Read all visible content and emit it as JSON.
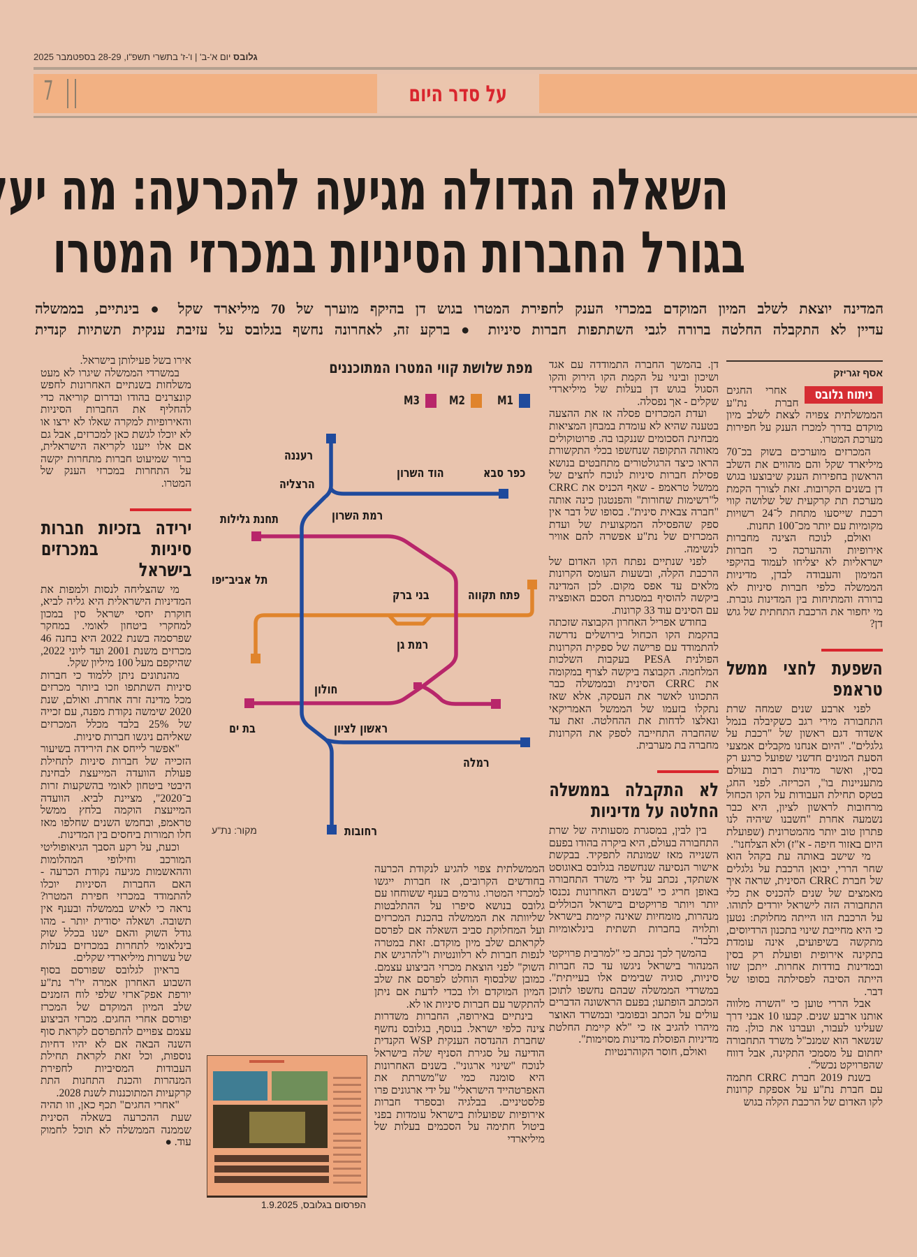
{
  "header": {
    "brand": "גלובס",
    "date_line": "יום א'-ב' | ו'-ז' בתשרי תשפ\"ו, 28-29 בספטמבר 2025"
  },
  "section": {
    "title": "על סדר היום",
    "page_number": "7"
  },
  "colors": {
    "background": "#e9c4ae",
    "band": "#f2b183",
    "accent_red": "#d9262e",
    "m1": "#1f4a9c",
    "m2": "#e0842c",
    "m3": "#b8266a"
  },
  "headline": {
    "lines": [
      "השאלה הגדולה מגיעה להכרעה: מה יעלה",
      "בגורל החברות הסיניות במכרזי המטרו"
    ]
  },
  "subheadline": {
    "lines": [
      "המדינה יוצאת לשלב המיון המוקדם במכרזי הענק לחפירת המטרו בגוש דן בהיקף מוערך של 70 מיליארד שקל ● בינתיים, בממשלה",
      "עדיין לא התקבלה החלטה ברורה לגבי השתתפות חברות סיניות ● ברקע זה, לאחרונה נחשף בגלובס על עזיבת ענקית תשתיות קנדית"
    ]
  },
  "article": {
    "byline": "אסף זגריזק",
    "badge": "ניתוח גלובס",
    "columns": [
      {
        "blocks": [
          {
            "type": "p",
            "text": "אחרי החגים חברת נת\"ע הממשלתית צפויה לצאת לשלב מיון מוקדם בדרך למכרז הענק על חפירות מערכת המטרו."
          },
          {
            "type": "p",
            "text": "המכרזים מוערכים בשוק בכ־70 מיליארד שקל והם מהווים את השלב הראשון בחפירות הענק שיבוצעו בגוש דן בשנים הקרובות. זאת לצורך הקמת מערכת תת קרקעית של שלושה קווי רכבת שייסעו מתחת ל־24 רשויות מקומיות עם יותר מכ־100 תחנות."
          },
          {
            "type": "p",
            "text": "ואולם, לנוכח הצינה מחברות אירופיות וההערכה כי חברות ישראליות לא יצליחו לעמוד בהיקפי המימון והעבודה לבדן, מדיניות הממשלה כלפי חברות סיניות לא ברורה והמתיחות בין המדינות גוברת. מי יחפור את הרכבת התחתית של גוש דן?"
          },
          {
            "type": "h",
            "text": "השפעת לחצי ממשל טראמפ"
          },
          {
            "type": "p",
            "text": "לפני ארבע שנים שמחה שרת התחבורה מירי רגב כשקיבלה בנמל אשדוד דגם ראשון של \"רכבת על גלגלים\". \"היום אנחנו מקבלים אמצעי הסעת המונים חדשני שפועל כרגע רק בסין, ואשר מדינות רבות בעולם מתעניינות בו\", הכריזה. לפני החג, בטקס תחילת העבודות על הקו הכחול מרחובות לראשון לציון, היא כבר נשמעה אחרת \"חשבנו שיהיה לנו פתרון טוב יותר מהמטרונית (שפועלת היום באזור חיפה - א\"ז) ולא הצלחנו\"."
          },
          {
            "type": "p",
            "text": "מי שישב באותה עת בקהל הוא שחר הררי, יבואן הרכבת על גלגלים של חברת CRRC הסינית, שראה איך מאמצים של שנים להכניס את כלי התחבורה הזה לישראל יורדים לתוהו. על הרכבת הזו הייתה מחלוקת: נטען כי היא מחייבת שינוי בתכנון הרדיוסים, מתקשה בשיפועים, אינה עומדת בתקינה אירופית ופועלת רק בסין ובמדינות בודדות אחרות. ייתכן שזו הייתה הסיבה לפסילתה בסופו של דבר."
          },
          {
            "type": "p",
            "text": "אבל הררי טוען כי \"השרה מלווה אותנו ארבע שנים. קבעו 10 אבני דרך שעלינו לעבור, ועברנו את כולן. מה שנשאר הוא שמנכ\"ל משרד התחבורה יחתום על מסמכי התקינה, אבל דווח שהפרויקט נכשל\"."
          },
          {
            "type": "p",
            "text": "בשנת 2019 חברת CRRC חתמה עם חברת נת\"ע על אספקת קרונות לקו האדום של הרכבת הקלה בגוש"
          }
        ]
      },
      {
        "blocks": [
          {
            "type": "c",
            "text": "דן. בהמשך החברה התמודדה עם אגד ושיכון ובינוי על הקמת הקו הירוק והקו הסגול בגוש דן בעלות של מיליארדי שקלים - אך נפסלה."
          },
          {
            "type": "p",
            "text": "ועדת המכרזים פסלה אז את ההצעה בטענה שהיא לא עומדת במבחן המציאות מבחינת הסכומים שננקבו בה. פרוטוקולים מאותה התקופה שנחשפו בכלי התקשורת הראו כיצד הרגולטורים מתחבטים בנושא פסילת חברות סיניות לנוכח לחצים של ממשל טראמפ - שאף הכניס את CRRC ל\"רשימות שחורות\" והפנטגון כינה אותה \"חברה צבאית סינית\". בסופו של דבר אין ספק שהפסילה המקצועית של ועדת המכרזים של נת\"ע אפשרה להם אוויר לנשימה."
          },
          {
            "type": "p",
            "text": "לפני שנתיים נפתח הקו האדום של הרכבת הקלה, ובשעות העומס הקרונות מלאים עד אפס מקום. לכן המדינה ביקשה להוסיף במסגרת הסכם האופציה עם הסינים עוד 33 קרונות."
          },
          {
            "type": "p",
            "text": "בחודש אפריל האחרון הקבוצה שזכתה בהקמת הקו הכחול בירושלים נדרשה להתמודד עם פרישה של ספקית הקרונות הפולנית PESA בעקבות השלכות המלחמה. הקבוצה ביקשה לצרף במקומה את CRRC הסינית ובממשלה כבר התכוונו לאשר את העסקה, אלא שאז נתקלו בזעמו של הממשל האמריקאי ונאלצו לדחות את ההחלטה. זאת עד שהחברה התחייבה לספק את הקרונות מחברה בת מערבית."
          },
          {
            "type": "h",
            "text": "לא התקבלה בממשלה החלטה על מדיניות"
          },
          {
            "type": "p",
            "text": "בין לבין, במסגרת מסעותיה של שרת התחבורה בעולם, היא ביקרה בהודו בפעם השנייה מאז שמונתה לתפקיד. בבקשת אישור הנסיעה שנחשפה בגלובס באוגוסט אשתקד, נכתב על ידי משרד התחבורה באופן חריג כי \"בשנים האחרונות נכנסו יותר ויותר פרויקטים בישראל הכוללים מנהרות, מומחיות שאינה קיימת בישראל ותלויה בחברות תשתית בינלאומיות בלבד\"."
          },
          {
            "type": "p",
            "text": "בהמשך לכך נכתב כי \"למרבית פרויקטי המנהור בישראל ניגשו עד כה חברות סיניות, סוגיה שבימים אלו בעייתית\". במשרדי הממשלה שבהם נחשפו לתוכן המכתב הופתעו; בפעם הראשונה הדברים עולים על הכתב ובפומבי ובמשרד האוצר מיהרו להגיב אז כי \"לא קיימת החלטת מדיניות הפוסלת מדינות מסוימות\"."
          },
          {
            "type": "p",
            "text": "ואולם, חוסר הקוהרנטיות"
          }
        ]
      },
      {
        "blocks": [
          {
            "type": "c",
            "text": "הממשלתית צפוי להגיע לנקודת הכרעה בחודשים הקרובים, אז חברות ייגשו למכרזי המטרו. גורמים בענף ששוחחו עם גלובס בנושא סיפרו על ההתלבטות שליוותה את הממשלה בהכנת המכרזים ועל המחלוקת סביב השאלה אם לפרסם לקראתם שלב מיון מוקדם. זאת במטרה לנפות חברות לא רלוונטיות ו\"להרגיש את השוק\" לפני הוצאת מכרזי הביצוע עצמם. כמובן שלבסוף הוחלט לפרסם את שלב המיון המוקדם ולו בכדי לדעת אם ניתן להתקשר עם חברות סיניות או לא."
          },
          {
            "type": "p",
            "text": "בינתיים באירופה, החברות משדרות צינה כלפי ישראל. בנוסף, בגלובס נחשף שחברת ההנדסה הענקית WSP הקנדית הודיעה על סגירת הסניף שלה בישראל לנוכח \"שינוי ארגוני\". בשנים האחרונות היא סומנה כמי ש\"משרתת את האפרטהייד הישראלי\" על ידי ארגונים פרו פלסטיניים. בבלגיה ובספרד חברות אירופיות שפועלות בישראל עומדות בפני ביטול חתימה על הסכמים בעלות של מיליארדי"
          }
        ]
      },
      {
        "blocks": [
          {
            "type": "c",
            "text": "אירו בשל פעילותן בישראל."
          },
          {
            "type": "p",
            "text": "במשרדי הממשלה שיגרו לא מעט משלחות בשנתיים האחרונות לחפש קונצרנים בהודו ובדרום קוריאה כדי להחליף את החברות הסיניות והאירופיות למקרה שאלו לא ירצו או לא יוכלו לגשת כאן למכרזים, אבל גם אם אלו ייענו לקריאה הישראלית, ברור שמיעוט חברות מתחרות יקשה על התחרות במכרזי הענק של המטרו."
          },
          {
            "type": "h",
            "text": "ירידה בזכיות חברות סיניות במכרזים בישראל"
          },
          {
            "type": "p",
            "text": "מי שהצליחה לנסות ולמפות את המדיניות הישראלית היא גליה לביא, חוקרת יחסי ישראל סין במכון למחקרי ביטחון לאומי. במחקר שפרסמה בשנת 2022 היא בחנה 46 מכרזים משנת 2001 ועד ליוני 2022, שהיקפם מעל 100 מיליון שקל."
          },
          {
            "type": "p",
            "text": "מהנתונים ניתן ללמוד כי חברות סיניות השתתפו וזכו ביותר מכרזים מכל מדינה זרה אחרת. ואולם, שנת 2020 שימשה נקודת מפנה, עם זכייה של 25% בלבד מכלל המכרזים שאליהם ניגשו חברות סיניות."
          },
          {
            "type": "p",
            "text": "\"אפשר לייחס את הירידה בשיעור הזכייה של חברות סיניות לתחילת פעולת הוועדה המייעצת לבחינת היבטי ביטחון לאומי בהשקעות זרות ב־2020\", מציינת לביא. הוועדה המייעצת הוקמה בלחץ ממשל טראמפ, ובחמש השנים שחלפו מאז חלו תמורות ביחסים בין המדינות."
          },
          {
            "type": "p",
            "text": "וכעת, על רקע הסבך הגיאופוליטי המורכב וחילופי המהלומות וההאשמות מגיעה נקודת הכרעה - האם החברות הסיניות יוכלו להתמודד במכרזי חפירת המטרו? נראה כי לאיש בממשלה ובענף אין תשובה. ושאלה יסודית יותר - מהו גודל השוק והאם ישנו בכלל שוק בינלאומי לתחרות במכרזים בעלות של עשרות מיליארדי שקלים."
          },
          {
            "type": "p",
            "text": "בראיון לגלובס שפורסם בסוף השבוע האחרון אמרה יו\"ר נת\"ע יורפת אפק־ארזי שלפי לוח הזמנים שלב המיון המוקדם של המכרז יפורסם אחרי החגים. מכרזי הביצוע עצמם צפויים להתפרסם לקראת סוף השנה הבאה אם לא יהיו דחיות נוספות, וכל זאת לקראת תחילת העבודות המסיביות לחפירת המנהרות והכנת התחנות התת קרקעיות המתוכננות לשנת 2028."
          },
          {
            "type": "p",
            "text": "\"אחרי החגים\" תכף כאן, וזו תהיה שעת ההכרעה בשאלה הסינית שממנה הממשלה לא תוכל לחמוק עוד. ●"
          }
        ]
      }
    ]
  },
  "map": {
    "title": "מפת שלושת קווי המטרו המתוכננים",
    "legend": [
      {
        "label": "M1",
        "color": "#1f4a9c"
      },
      {
        "label": "M2",
        "color": "#e0842c"
      },
      {
        "label": "M3",
        "color": "#b8266a"
      }
    ],
    "stations": [
      "רעננה",
      "הרצליה",
      "הוד השרון",
      "כפר סבא",
      "רמת השרון",
      "תחנת גלילות",
      "תל אביב־יפו",
      "בני ברק",
      "פתח תקווה",
      "רמת גן",
      "חולון",
      "בת ים",
      "ראשון לציון",
      "רמלה",
      "רחובות"
    ],
    "source": "מקור: נת\"ע"
  },
  "clipping": {
    "caption": "הפרסום בגלובס, 1.9.2025"
  }
}
